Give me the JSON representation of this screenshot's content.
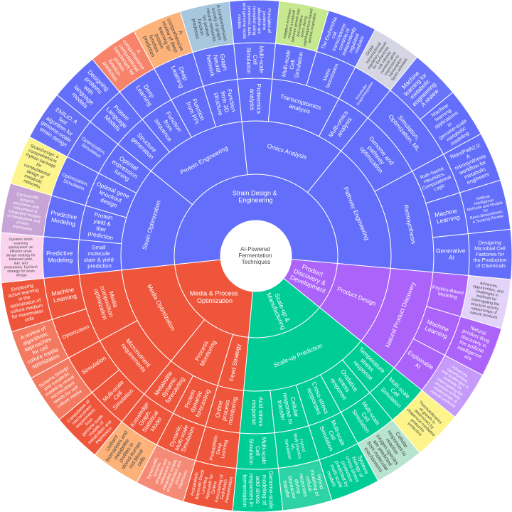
{
  "chart_data": {
    "type": "sunburst",
    "root": {
      "label": "AI-Powered Fermentation Techniques",
      "color": "#ffffff",
      "children": [
        {
          "label": "Strain Design & Engineering",
          "color": "#636efa",
          "children": [
            {
              "label": "Strain Optimization",
              "children": [
                {
                  "label": "Small molecule stain & yield prediction",
                  "children": [
                    {
                      "label": "Predictive Modeling",
                      "children": [
                        {
                          "label": "Dynamic strain scanning optimization: an efficient strain design strategy for balanced yield, titer, and productivity. DySScO strategy for strain design",
                          "color": "#fbd3ee"
                        }
                      ]
                    }
                  ]
                },
                {
                  "label": "Protein yield & titer prediction",
                  "children": [
                    {
                      "label": "Predictive Modeling",
                      "children": [
                        {
                          "label": "DynamicME: dynamic simulation and refinement of integrated models of metabolism and protein expression",
                          "color": "#c7a3d6"
                        }
                      ]
                    }
                  ]
                },
                {
                  "label": "Optimal gene knockout design",
                  "children": [
                    {
                      "label": "Optimization, Simulation",
                      "children": [
                        {
                          "label": "StrainDesign: a comprehensive Python package for computational design of metabolic networks",
                          "color": "#fdf58c"
                        }
                      ]
                    }
                  ]
                },
                {
                  "label": "Optimal expression tuning",
                  "children": [
                    {
                      "label": "Optimization, Simulation",
                      "children": [
                        {
                          "label": "EMILiO: A fast algorithm for genome-scale strain design",
                          "color": "#6570f6"
                        }
                      ]
                    }
                  ]
                }
              ]
            },
            {
              "label": "Protein Engineering",
              "children": [
                {
                  "label": "Structure generation",
                  "children": [
                    {
                      "label": "Protein Language Models",
                      "children": [
                        {
                          "label": "Designing proteins with language models",
                          "color": "#636efa"
                        }
                      ]
                    }
                  ]
                },
                {
                  "label": "Function from sequence",
                  "children": [
                    {
                      "label": "Deep Learning",
                      "children": [
                        {
                          "label": "A comprehensive computational benchmark for protein function prediction",
                          "color": "#f7836b"
                        }
                      ]
                    }
                  ]
                },
                {
                  "label": "Function from PPI",
                  "children": [
                    {
                      "label": "Deep Learning",
                      "children": [
                        {
                          "label": "A comprehensive review of deep learning for protein function prediction",
                          "color": "#fdb27a"
                        }
                      ]
                    }
                  ]
                },
                {
                  "label": "Function from 3D structure",
                  "children": [
                    {
                      "label": "Graph Neural Network",
                      "children": [
                        {
                          "label": "A comprehensive survey of graph neural networks for protein function prediction",
                          "color": "#a7c7df"
                        }
                      ]
                    }
                  ]
                }
              ]
            },
            {
              "label": "Omics Analysis",
              "children": [
                {
                  "label": "Proteomics analysis",
                  "children": [
                    {
                      "label": "Multi-scale Cell Simulation",
                      "children": [
                        {
                          "label": "Principles of proteome allocation are revealed using proteomic data and genome-scale models",
                          "color": "#636efa"
                        }
                      ]
                    }
                  ]
                },
                {
                  "label": "Transcriptomics analysis",
                  "children": [
                    {
                      "label": "Multi-scale Cell Simulation",
                      "children": [
                        {
                          "label": "Adaptive evolution reveals a tradeoff between growth rate and oxidative stress during naphthoquinone-based aerobic respiration",
                          "color": "#c6e88f"
                        }
                      ]
                    },
                    {
                      "label": "Matrix factorization",
                      "children": [
                        {
                          "label": "The Escherichia coli transcriptome consists of independently regulated modules",
                          "color": "#636efa"
                        }
                      ]
                    }
                  ]
                },
                {
                  "label": "Multi-omics analysis",
                  "children": [
                    {
                      "label": "Knowledge Graph/Integration",
                      "children": [
                        {
                          "label": "Global transcriptional regulatory network for Escherichia coli robustly connects gene expression to transcription factor activities",
                          "color": "#d5d5e3"
                        }
                      ]
                    }
                  ]
                }
              ]
            },
            {
              "label": "Pathway Engineering",
              "children": [
                {
                  "label": "Genome and pathway optimization",
                  "children": [
                    {
                      "label": "Simulation, Optimization, ML",
                      "children": [
                        {
                          "label": "Machine learning for metabolic engineering: A review",
                          "color": "#6a74fb"
                        },
                        {
                          "label": "Machine learning applications in genome-scale metabolic modeling",
                          "color": "#636efa"
                        }
                      ]
                    }
                  ]
                },
                {
                  "label": "Retrosynthesis",
                  "children": [
                    {
                      "label": "Rule-based, Heuristics, Computational Logic",
                      "children": [
                        {
                          "label": "RetroPath2.0: A retrosynthesis workflow for metabolic engineers",
                          "color": "#636efa"
                        }
                      ]
                    },
                    {
                      "label": "Machine Learning",
                      "children": [
                        {
                          "label": "Artificial Intelligence Methods and Models for Retro-Biosynthesis: A Scoping Review",
                          "color": "#636efa"
                        }
                      ]
                    },
                    {
                      "label": "Generative AI",
                      "children": [
                        {
                          "label": "Designing Microbial Cell Factories for the Production of Chemicals",
                          "color": "#636efa"
                        }
                      ]
                    }
                  ]
                }
              ]
            }
          ]
        },
        {
          "label": "Product Discovery & Development",
          "color": "#ab63fa",
          "children": [
            {
              "label": "Product Design",
              "children": [
                {
                  "label": "Natural Product Discovery",
                  "children": [
                    {
                      "label": "Physics-Based Modeling",
                      "children": [
                        {
                          "label": "Advances, opportunities, and challenges in methods for interrogating the structure activity relationships of natural products",
                          "color": "#e3d3f8"
                        }
                      ]
                    },
                    {
                      "label": "Machine Learning",
                      "children": [
                        {
                          "label": "Natural product drug discovery in the artificial intelligence era",
                          "color": "#ab63fa"
                        }
                      ]
                    },
                    {
                      "label": "Explainable AI",
                      "children": [
                        {
                          "label": "Advances, opportunities, and challenges in methods for interrogating the structure-activity relationships of natural products",
                          "color": "#c59af9"
                        }
                      ]
                    }
                  ]
                }
              ]
            }
          ]
        },
        {
          "label": "Scale-up & Manufacturing",
          "color": "#00cc96",
          "children": [
            {
              "label": "Scale-up Prediction",
              "children": [
                {
                  "label": "Temperature stress response",
                  "children": [
                    {
                      "label": "Multi-scale Cell Simulation",
                      "children": [
                        {
                          "label": "Thermotolerance of growth is determined by chaperone-mediated proteome protection",
                          "color": "#fdf58c"
                        }
                      ]
                    }
                  ]
                },
                {
                  "label": "Oxidative stress response",
                  "children": [
                    {
                      "label": "Multi-scale Cell Simulation",
                      "children": [
                        {
                          "label": "Cellular responses to reactive oxygen species are predicted from molecular mechanisms",
                          "color": "#b7e3cf"
                        }
                      ]
                    }
                  ]
                },
                {
                  "label": "Cross-stress responses",
                  "children": [
                    {
                      "label": "Multi-scale Cell Simulation",
                      "children": [
                        {
                          "label": "Systems biology of cross-stress protection predicted by multi-scale models",
                          "color": "#00cc96"
                        }
                      ]
                    }
                  ]
                },
                {
                  "label": "Cellular response to transfer",
                  "children": [
                    {
                      "label": "Hybrid Multi-physics, ML, Simulation",
                      "children": [
                        {
                          "label": "Hybrid modeling of cellular responses during bioreactor transfer",
                          "color": "#2dd3a4"
                        }
                      ]
                    }
                  ]
                },
                {
                  "label": "Acid stress response",
                  "children": [
                    {
                      "label": "Multi-scale Cell Simulation",
                      "children": [
                        {
                          "label": "Genome-scale modeling of acid stress responses in fermentation",
                          "color": "#00cc96"
                        }
                      ]
                    }
                  ]
                }
              ]
            }
          ]
        },
        {
          "label": "Media & Process Optimization",
          "color": "#ef553b",
          "children": [
            {
              "label": "Feed Strategy",
              "children": [
                {
                  "label": "Online process monitoring",
                  "children": [
                    {
                      "label": "Probabilistic Deep Learning",
                      "children": [
                        {
                          "label": "Probabilistic Bayesian Deep Learning Approach for Online Forecasting of Fed-Batch Fermentation",
                          "color": "#ef553b"
                        }
                      ]
                    }
                  ]
                }
              ]
            },
            {
              "label": "Process Monitoring",
              "children": [
                {
                  "label": "Protein dynamic forecasting",
                  "children": [
                    {
                      "label": "Dynamic, Multi-scale Simulation",
                      "children": [
                        {
                          "label": "DynamicME: dynamic simulation and refinement of integrated models of metabolism and protein expression",
                          "color": "#f58b76"
                        }
                      ]
                    }
                  ]
                },
                {
                  "label": "Metabolite dynamic forecasting",
                  "children": [
                    {
                      "label": "Knowledge Graph, Statistical Model",
                      "children": [
                        {
                          "label": "Uniform biomarkers and metabolite profiles in stored human red blood cells",
                          "color": "#fdb27a"
                        }
                      ]
                    }
                  ]
                }
              ]
            },
            {
              "label": "Media Optimization",
              "children": [
                {
                  "label": "Micronutrient requirements",
                  "children": [
                    {
                      "label": "Multi-scale Cell Simulation",
                      "children": [
                        {
                          "label": "Computation of micronutrient requirements from genome-scale models of metabolism and expression",
                          "color": "#ef553b"
                        }
                      ]
                    },
                    {
                      "label": "Simulation",
                      "children": [
                        {
                          "label": "Systems biology and metabolic modeling reveal micronutrient needs for cell culture media",
                          "color": "#f37a60"
                        }
                      ]
                    }
                  ]
                },
                {
                  "label": "Media composition optimization",
                  "children": [
                    {
                      "label": "Optimization",
                      "children": [
                        {
                          "label": "A review of algorithmic approaches for cell culture media optimization",
                          "color": "#f37a60"
                        }
                      ]
                    },
                    {
                      "label": "Machine Learning",
                      "children": [
                        {
                          "label": "Employing active learning in the optimization of culture medium for mammalian cells",
                          "color": "#ef553b"
                        }
                      ]
                    }
                  ]
                }
              ]
            }
          ]
        }
      ]
    }
  }
}
